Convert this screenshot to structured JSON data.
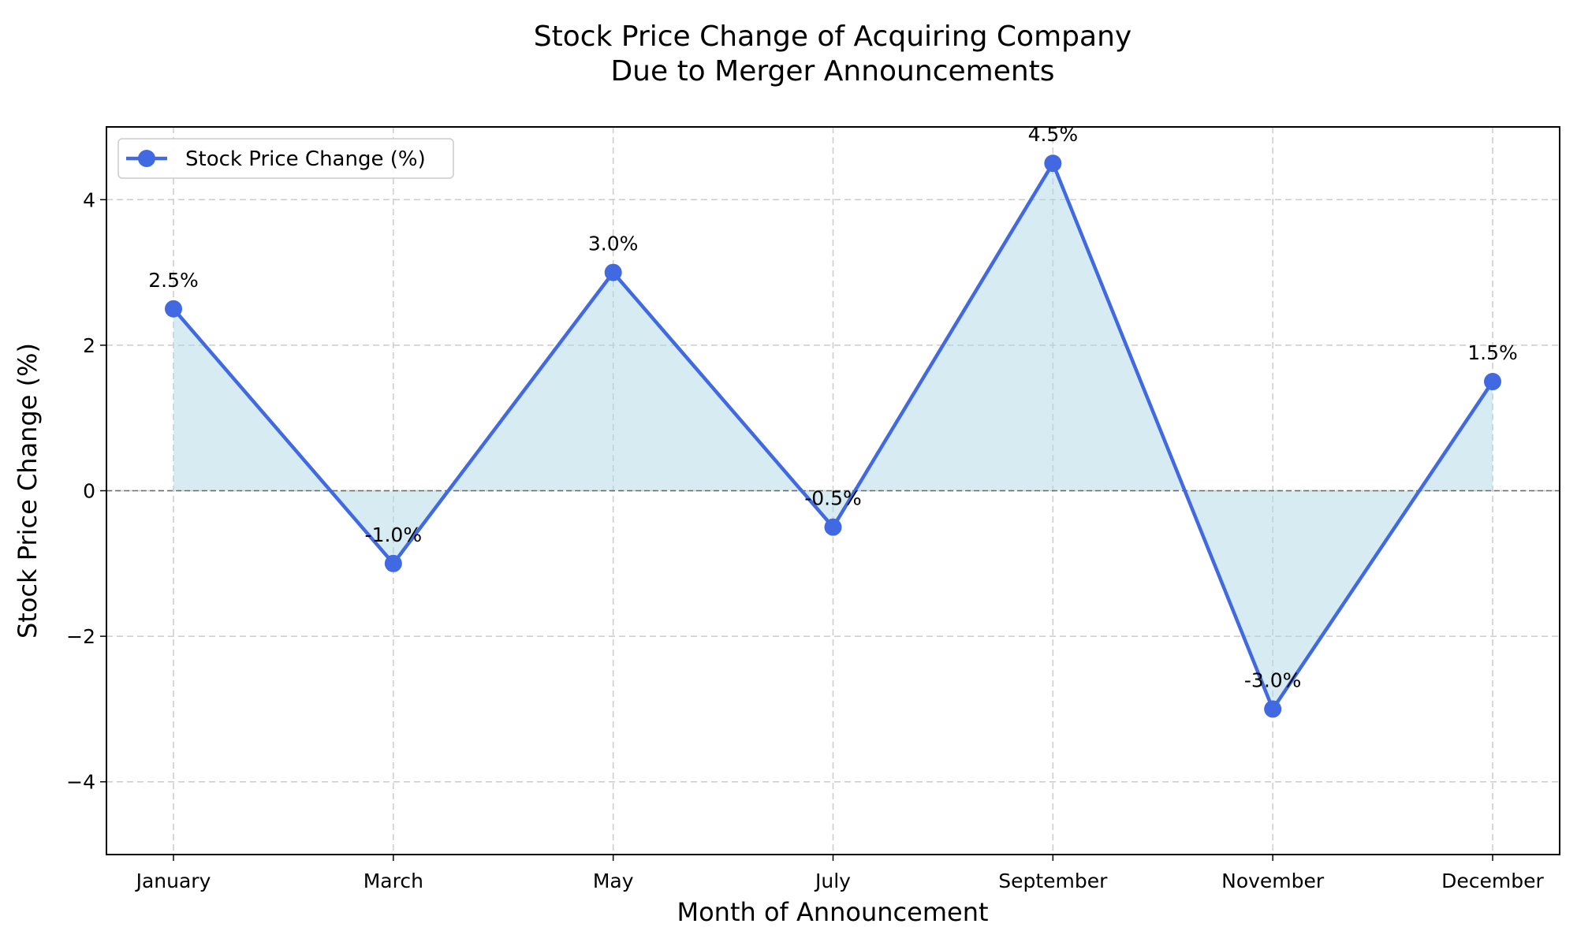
{
  "chart_data": {
    "type": "line",
    "title": [
      "Stock Price Change of Acquiring Company",
      "Due to Merger Announcements"
    ],
    "xlabel": "Month of Announcement",
    "ylabel": "Stock Price Change (%)",
    "categories": [
      "January",
      "March",
      "May",
      "July",
      "September",
      "November",
      "December"
    ],
    "series": [
      {
        "name": "Stock Price Change (%)",
        "values": [
          2.5,
          -1.0,
          3.0,
          -0.5,
          4.5,
          -3.0,
          1.5
        ],
        "labels": [
          "2.5%",
          "-1.0%",
          "3.0%",
          "-0.5%",
          "4.5%",
          "-3.0%",
          "1.5%"
        ],
        "color": "#4169e1",
        "fill_color": "#add8e6"
      }
    ],
    "ylim": [
      -5,
      5
    ],
    "yticks": [
      -4,
      -2,
      0,
      2,
      4
    ],
    "ytick_labels": [
      "−4",
      "−2",
      "0",
      "2",
      "4"
    ],
    "zero_line": true,
    "grid": true,
    "legend_position": "top-left"
  }
}
